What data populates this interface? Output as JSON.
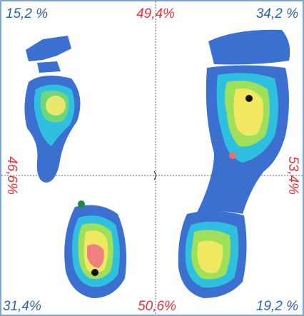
{
  "labels": {
    "top_left": "15,2 %",
    "top_center": "49,4%",
    "top_right": "34,2 %",
    "left_middle": "46,6%",
    "right_middle": "53,4%",
    "bottom_left": "31,4%",
    "bottom_center": "50,6%",
    "bottom_right": "19,2 %"
  }
}
